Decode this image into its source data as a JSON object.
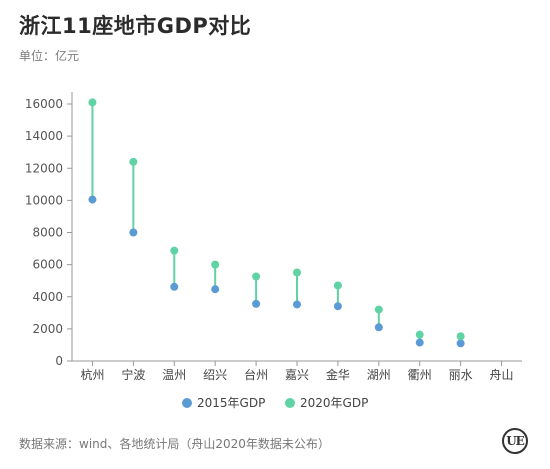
{
  "header": {
    "title": "浙江11座地市GDP对比",
    "unit": "单位：亿元"
  },
  "footer": {
    "source": "数据来源：wind、各地统计局（舟山2020年数据未公布）",
    "logo_text": "UE"
  },
  "colors": {
    "series_2015": "#5b9bd5",
    "series_2020": "#5fd3a4",
    "connector": "#5fd3a4",
    "axis": "#999999"
  },
  "chart_data": {
    "type": "dumbbell",
    "title": "浙江11座地市GDP对比",
    "ylabel": "单位：亿元",
    "ylim": [
      0,
      16000
    ],
    "yticks": [
      0,
      2000,
      4000,
      6000,
      8000,
      10000,
      12000,
      14000,
      16000
    ],
    "grid": false,
    "legend_position": "bottom",
    "categories": [
      "杭州",
      "宁波",
      "温州",
      "绍兴",
      "台州",
      "嘉兴",
      "金华",
      "湖州",
      "衢州",
      "丽水",
      "舟山"
    ],
    "series": [
      {
        "name": "2015年GDP",
        "values": [
          10050,
          8000,
          4620,
          4470,
          3560,
          3520,
          3410,
          2100,
          1150,
          1100,
          null
        ]
      },
      {
        "name": "2020年GDP",
        "values": [
          16100,
          12400,
          6870,
          6000,
          5260,
          5510,
          4700,
          3200,
          1640,
          1540,
          null
        ]
      }
    ]
  }
}
